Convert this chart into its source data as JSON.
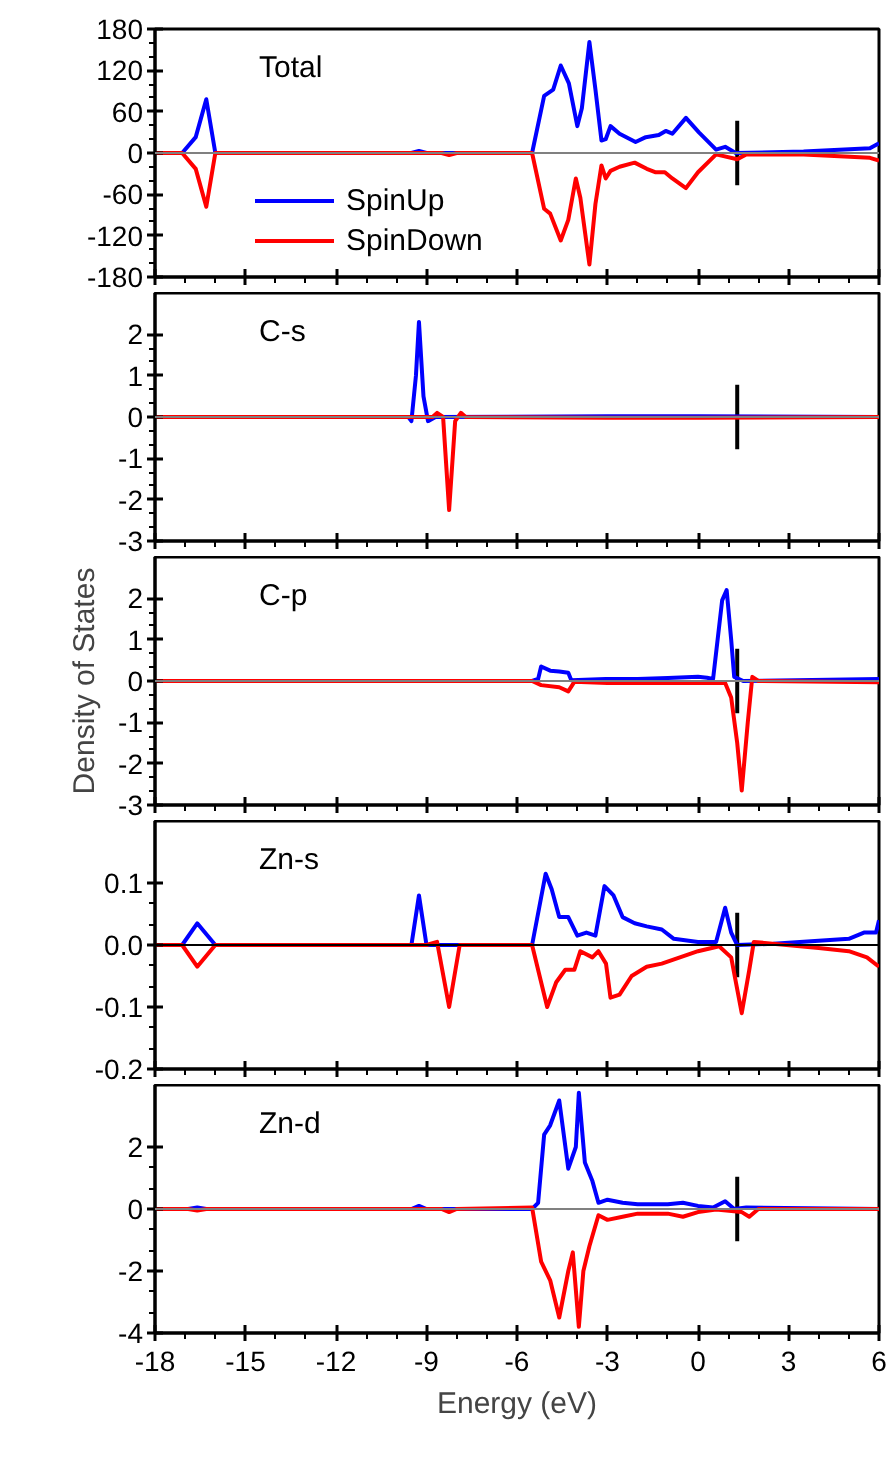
{
  "chart_data": [
    {
      "type": "line",
      "title": "Total",
      "xlim": [
        -18,
        6
      ],
      "xticks": [
        -18,
        -15,
        -12,
        -9,
        -6,
        -3,
        0,
        3,
        6
      ],
      "ylim": [
        -180,
        180
      ],
      "yticks": [
        -180,
        -120,
        -60,
        0,
        60,
        120,
        180
      ],
      "tick_labels": "y",
      "legend": "bottom left",
      "ref_lines": [
        {
          "axis": "y",
          "value": 0,
          "color": "#808080"
        },
        {
          "axis": "x",
          "value": 1.3,
          "color": "#000000"
        }
      ],
      "series": [
        {
          "name": "SpinUp",
          "color": "#0000ff",
          "x": [
            -18,
            -17.1,
            -16.65,
            -16.3,
            -16.0,
            -9.5,
            -9.25,
            -9.0,
            -5.5,
            -5.1,
            -4.8,
            -4.55,
            -4.28,
            -4.0,
            -3.85,
            -3.6,
            -3.4,
            -3.2,
            -3.06,
            -2.9,
            -2.6,
            -2.07,
            -1.73,
            -1.3,
            -1.07,
            -0.85,
            -0.4,
            0.03,
            0.6,
            0.9,
            1.25,
            3.5,
            5.7,
            6
          ],
          "values": [
            0,
            0,
            23,
            78,
            0,
            0,
            3,
            0,
            0,
            83,
            92,
            127,
            101,
            39,
            65,
            161,
            92,
            18,
            20,
            39,
            28,
            16,
            23,
            26,
            32,
            28,
            51,
            30,
            5,
            9,
            0,
            2,
            7,
            14
          ]
        },
        {
          "name": "SpinDown",
          "color": "#ff0000",
          "x": [
            -18,
            -17.1,
            -16.65,
            -16.3,
            -16.0,
            -8.5,
            -8.25,
            -8.0,
            -5.5,
            -5.1,
            -4.9,
            -4.55,
            -4.3,
            -4.05,
            -3.9,
            -3.6,
            -3.4,
            -3.2,
            -3.06,
            -2.9,
            -2.6,
            -2.1,
            -1.7,
            -1.4,
            -1.1,
            -0.85,
            -0.4,
            0.0,
            0.6,
            1.3,
            1.6,
            3.5,
            5.7,
            6
          ],
          "values": [
            0,
            0,
            -23,
            -78,
            0,
            0,
            -3,
            0,
            0,
            -81,
            -88,
            -127,
            -97,
            -37,
            -65,
            -162,
            -74,
            -18,
            -37,
            -26,
            -20,
            -14,
            -23,
            -28,
            -28,
            -37,
            -51,
            -28,
            -2,
            -9,
            -2,
            -2,
            -7,
            -11
          ]
        }
      ]
    },
    {
      "type": "line",
      "title": "C-s",
      "xlim": [
        -18,
        6
      ],
      "xticks": [
        -18,
        -15,
        -12,
        -9,
        -6,
        -3,
        0,
        3,
        6
      ],
      "ylim": [
        -3,
        3
      ],
      "yticks": [
        -3,
        -2,
        -1,
        0,
        1,
        2
      ],
      "tick_labels": "y",
      "ref_lines": [
        {
          "axis": "y",
          "value": 0,
          "color": "#808080"
        },
        {
          "axis": "x",
          "value": 1.3,
          "color": "#000000"
        }
      ],
      "series": [
        {
          "color": "#0000ff",
          "x": [
            -18,
            -9.6,
            -9.5,
            -9.35,
            -9.25,
            -9.1,
            -8.95,
            -8.7,
            -3,
            0,
            6
          ],
          "values": [
            0,
            0,
            -0.1,
            1.0,
            2.3,
            0.5,
            -0.1,
            0,
            0.02,
            0.02,
            0
          ]
        },
        {
          "color": "#ff0000",
          "x": [
            -18,
            -8.8,
            -8.65,
            -8.45,
            -8.25,
            -8.05,
            -7.86,
            -7.7,
            -3,
            0,
            6
          ],
          "values": [
            0,
            0,
            0.1,
            0,
            -2.25,
            -0.1,
            0.1,
            0,
            -0.02,
            -0.02,
            0
          ]
        }
      ]
    },
    {
      "type": "line",
      "title": "C-p",
      "ylabel": "Density of States",
      "xlim": [
        -18,
        6
      ],
      "xticks": [
        -18,
        -15,
        -12,
        -9,
        -6,
        -3,
        0,
        3,
        6
      ],
      "ylim": [
        -3,
        3
      ],
      "yticks": [
        -3,
        -2,
        -1,
        0,
        1,
        2
      ],
      "tick_labels": "y",
      "ref_lines": [
        {
          "axis": "y",
          "value": 0,
          "color": "#808080"
        },
        {
          "axis": "x",
          "value": 1.3,
          "color": "#000000"
        }
      ],
      "series": [
        {
          "color": "#0000ff",
          "x": [
            -18,
            -5.5,
            -5.3,
            -5.2,
            -4.9,
            -4.6,
            -4.3,
            -4.2,
            -3.06,
            -2.0,
            -1.0,
            0,
            0.3,
            0.5,
            0.8,
            0.95,
            1.1,
            1.2,
            1.5,
            6
          ],
          "values": [
            0,
            0,
            0.05,
            0.35,
            0.25,
            0.23,
            0.2,
            0.02,
            0.05,
            0.05,
            0.07,
            0.1,
            0.08,
            0.05,
            1.95,
            2.2,
            1.0,
            0.1,
            0,
            0.05
          ]
        },
        {
          "color": "#ff0000",
          "x": [
            -18,
            -5.5,
            -5.2,
            -4.6,
            -4.3,
            -4.1,
            -3,
            -1,
            0.5,
            0.9,
            1.1,
            1.3,
            1.45,
            1.65,
            1.8,
            2.0,
            6
          ],
          "values": [
            0,
            0,
            -0.1,
            -0.15,
            -0.25,
            -0.02,
            -0.05,
            -0.05,
            -0.05,
            -0.05,
            -0.4,
            -1.5,
            -2.65,
            -1.0,
            0.1,
            0,
            -0.03
          ]
        }
      ]
    },
    {
      "type": "line",
      "title": "Zn-s",
      "xlim": [
        -18,
        6
      ],
      "xticks": [
        -18,
        -15,
        -12,
        -9,
        -6,
        -3,
        0,
        3,
        6
      ],
      "ylim": [
        -0.2,
        0.2
      ],
      "yticks": [
        {
          "value": -0.2,
          "label": "-0.2"
        },
        {
          "value": -0.1,
          "label": "-0.1"
        },
        {
          "value": 0,
          "label": "0.0"
        },
        {
          "value": 0.1,
          "label": "0.1"
        }
      ],
      "tick_labels": "y",
      "ref_lines": [
        {
          "axis": "y",
          "value": 0,
          "color": "#000000"
        },
        {
          "axis": "x",
          "value": 1.3,
          "color": "#000000"
        }
      ],
      "series": [
        {
          "color": "#0000ff",
          "x": [
            -18,
            -17.1,
            -16.6,
            -16.0,
            -9.5,
            -9.25,
            -9.0,
            -5.5,
            -5.05,
            -4.85,
            -4.6,
            -4.3,
            -4.0,
            -3.7,
            -3.4,
            -3.1,
            -2.8,
            -2.5,
            -2.1,
            -1.7,
            -1.2,
            -0.8,
            0,
            0.6,
            0.9,
            1.1,
            1.3,
            2.5,
            5.0,
            5.5,
            5.9,
            6
          ],
          "values": [
            0,
            0,
            0.035,
            0,
            0,
            0.08,
            0,
            0,
            0.115,
            0.09,
            0.045,
            0.045,
            0.015,
            0.02,
            0.015,
            0.095,
            0.08,
            0.045,
            0.035,
            0.03,
            0.025,
            0.01,
            0.005,
            0.005,
            0.06,
            0.02,
            0,
            0.002,
            0.01,
            0.02,
            0.02,
            0.04
          ]
        },
        {
          "color": "#ff0000",
          "x": [
            -18,
            -17.1,
            -16.6,
            -16.0,
            -9.0,
            -8.65,
            -8.25,
            -7.9,
            -5.5,
            -5.2,
            -5.0,
            -4.7,
            -4.4,
            -4.1,
            -3.9,
            -3.5,
            -3.3,
            -3.05,
            -2.9,
            -2.6,
            -2.2,
            -1.7,
            -1.2,
            -0.6,
            0,
            0.7,
            1.1,
            1.45,
            1.7,
            1.85,
            4,
            5,
            5.6,
            6
          ],
          "values": [
            0,
            0,
            -0.035,
            0,
            0,
            0.005,
            -0.1,
            0,
            0,
            -0.06,
            -0.1,
            -0.06,
            -0.04,
            -0.04,
            -0.01,
            -0.02,
            -0.01,
            -0.03,
            -0.085,
            -0.08,
            -0.05,
            -0.035,
            -0.03,
            -0.02,
            -0.01,
            -0.002,
            -0.02,
            -0.11,
            -0.04,
            0.005,
            -0.005,
            -0.01,
            -0.02,
            -0.035
          ]
        }
      ]
    },
    {
      "type": "line",
      "title": "Zn-d",
      "xlabel": "Energy (eV)",
      "xlim": [
        -18,
        6
      ],
      "xticks": [
        -18,
        -15,
        -12,
        -9,
        -6,
        -3,
        0,
        3,
        6
      ],
      "ylim": [
        -4,
        4
      ],
      "yticks": [
        -4,
        -2,
        0,
        2
      ],
      "ref_lines": [
        {
          "axis": "y",
          "value": 0,
          "color": "#808080"
        },
        {
          "axis": "x",
          "value": 1.3,
          "color": "#000000"
        }
      ],
      "series": [
        {
          "color": "#0000ff",
          "x": [
            -18,
            -16.9,
            -16.6,
            -16.3,
            -9.5,
            -9.25,
            -9.0,
            -5.5,
            -5.3,
            -5.1,
            -4.9,
            -4.6,
            -4.3,
            -4.05,
            -3.95,
            -3.75,
            -3.5,
            -3.3,
            -3.0,
            -2.5,
            -2,
            -1,
            -0.5,
            0,
            0.5,
            0.9,
            1.2,
            1.6,
            6
          ],
          "values": [
            0,
            0,
            0.05,
            0,
            0,
            0.1,
            0,
            0,
            0.2,
            2.4,
            2.7,
            3.5,
            1.3,
            2.0,
            3.75,
            1.5,
            0.9,
            0.2,
            0.3,
            0.2,
            0.15,
            0.15,
            0.2,
            0.1,
            0.05,
            0.25,
            0,
            0.05,
            0
          ]
        },
        {
          "color": "#ff0000",
          "x": [
            -18,
            -16.9,
            -16.6,
            -16.3,
            -8.5,
            -8.25,
            -8.0,
            -5.5,
            -5.2,
            -4.9,
            -4.6,
            -4.3,
            -4.15,
            -3.95,
            -3.8,
            -3.6,
            -3.3,
            -3.0,
            -2.5,
            -2,
            -1,
            -0.5,
            0,
            0.6,
            1.45,
            1.7,
            2,
            6
          ],
          "values": [
            0,
            0,
            -0.05,
            0,
            0,
            -0.1,
            0,
            0.05,
            -1.7,
            -2.3,
            -3.5,
            -2.0,
            -1.4,
            -3.8,
            -2.0,
            -1.2,
            -0.2,
            -0.35,
            -0.25,
            -0.15,
            -0.15,
            -0.25,
            -0.1,
            -0.02,
            -0.1,
            -0.25,
            0,
            0
          ]
        }
      ]
    }
  ]
}
